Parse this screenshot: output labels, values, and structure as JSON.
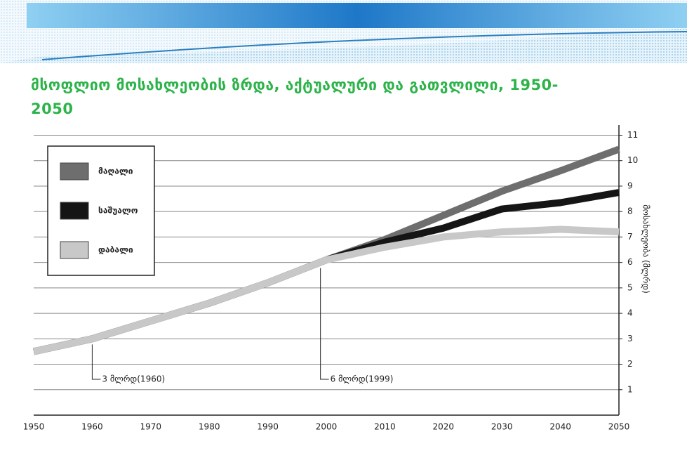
{
  "chart_data": {
    "type": "line",
    "title": "მსოფლიო მოსახლეობის ზრდა, აქტუალური და გათვლილი, 1950-2050",
    "y_label": "მოსახლეობა (მლრდ)",
    "x": [
      1950,
      1960,
      1970,
      1980,
      1990,
      2000,
      2010,
      2020,
      2030,
      2040,
      2050
    ],
    "series": [
      {
        "name": "მაღალი",
        "color": "#6e6e6e",
        "values": [
          2.5,
          3.0,
          3.7,
          4.4,
          5.2,
          6.1,
          6.9,
          7.85,
          8.8,
          9.6,
          10.45
        ]
      },
      {
        "name": "საშუალო",
        "color": "#151515",
        "values": [
          2.5,
          3.0,
          3.7,
          4.4,
          5.2,
          6.1,
          6.8,
          7.35,
          8.1,
          8.35,
          8.75
        ]
      },
      {
        "name": "დაბალი",
        "color": "#c8c8c8",
        "values": [
          2.5,
          3.0,
          3.7,
          4.4,
          5.2,
          6.1,
          6.6,
          7.0,
          7.2,
          7.3,
          7.2
        ]
      }
    ],
    "annotations": [
      {
        "text": "3 მლრდ(1960)",
        "x": 1960,
        "y": 3.0
      },
      {
        "text": "6 მლრდ(1999)",
        "x": 1999,
        "y": 6.0
      }
    ],
    "xlim": [
      1950,
      2050
    ],
    "xticks": [
      1950,
      1960,
      1970,
      1980,
      1990,
      2000,
      2010,
      2020,
      2030,
      2040,
      2050
    ],
    "ylim": [
      0,
      11.4
    ],
    "yticks": [
      1,
      2,
      3,
      4,
      5,
      6,
      7,
      8,
      9,
      10,
      11
    ],
    "grid": true,
    "y_axis_side": "right",
    "legend": "upper left"
  }
}
